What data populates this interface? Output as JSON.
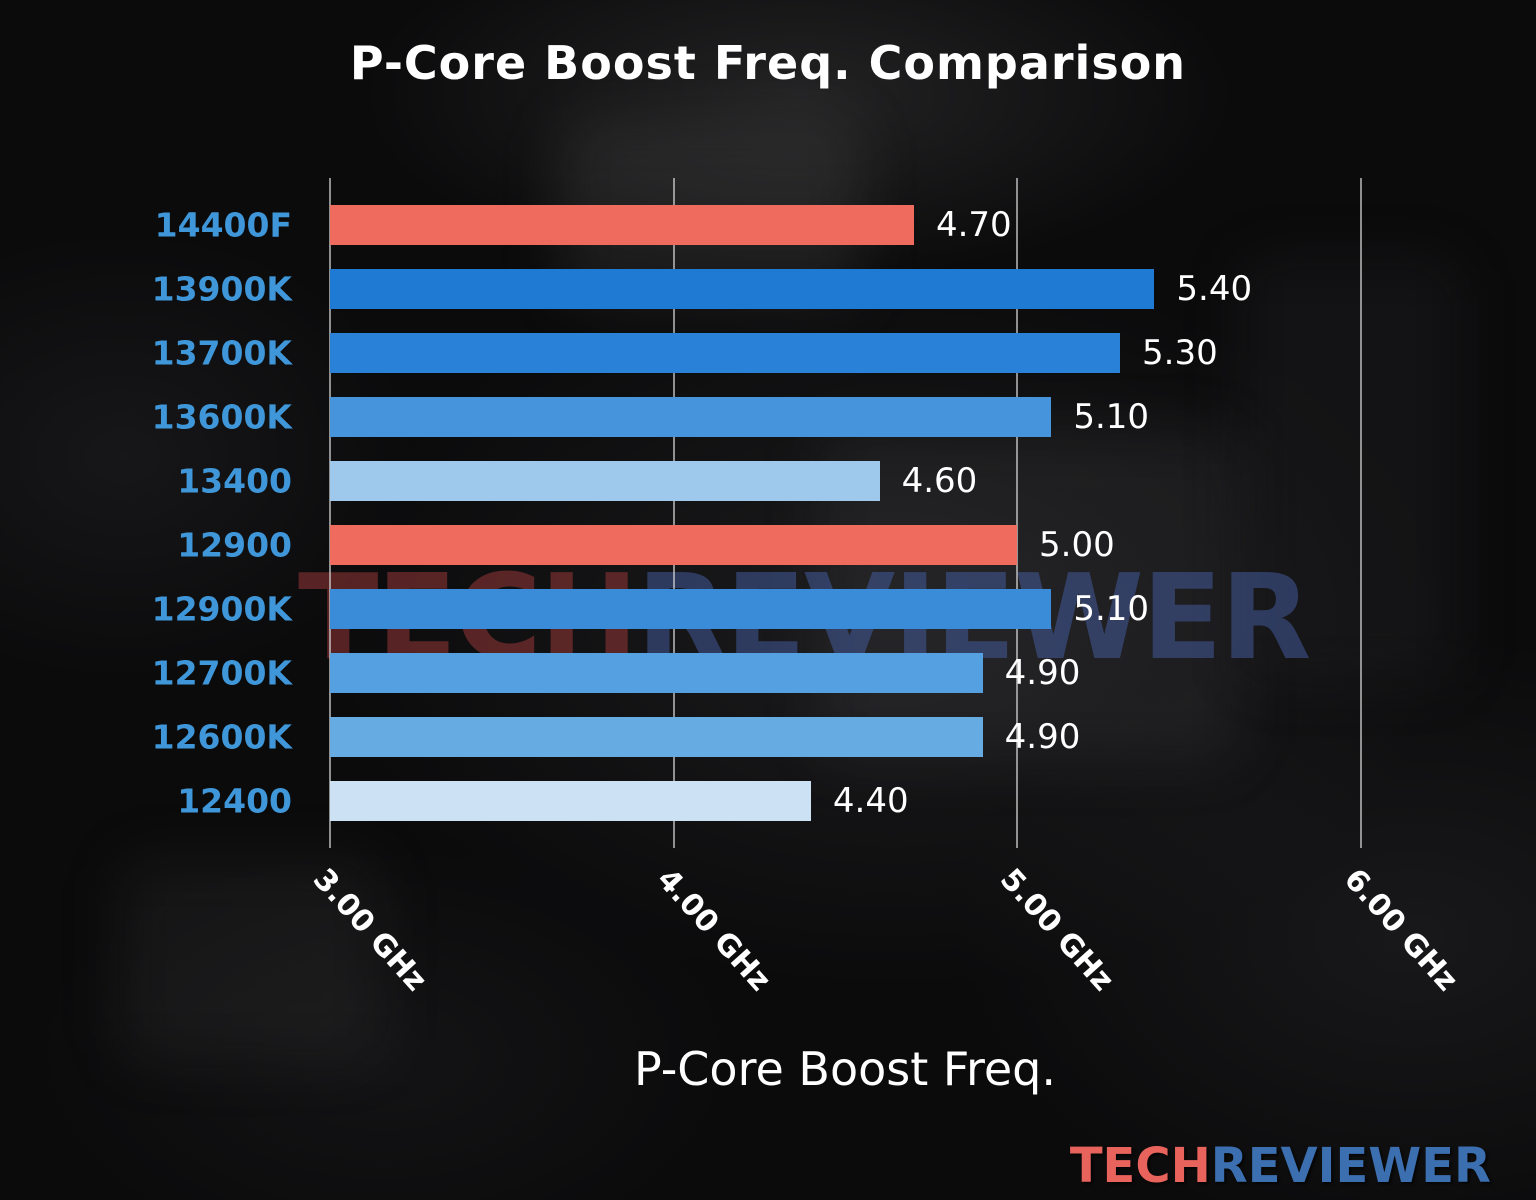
{
  "title": "P-Core Boost Freq. Comparison",
  "watermark": {
    "part1": "TECH",
    "part2": "REVIEWER"
  },
  "brand": {
    "part1": "TECH",
    "part2": "REVIEWER",
    "color1": "#e8635c",
    "color2": "#3c6fb0"
  },
  "chart_data": {
    "type": "bar",
    "orientation": "horizontal",
    "title": "P-Core Boost Freq. Comparison",
    "xlabel": "P-Core Boost Freq.",
    "ylabel": "",
    "xlim": [
      3.0,
      6.4
    ],
    "grid": true,
    "categories": [
      "14400F",
      "13900K",
      "13700K",
      "13600K",
      "13400",
      "12900",
      "12900K",
      "12700K",
      "12600K",
      "12400"
    ],
    "values": [
      4.7,
      5.4,
      5.3,
      5.1,
      4.6,
      5.0,
      5.1,
      4.9,
      4.9,
      4.4
    ],
    "value_labels": [
      "4.70",
      "5.40",
      "5.30",
      "5.10",
      "4.60",
      "5.00",
      "5.10",
      "4.90",
      "4.90",
      "4.40"
    ],
    "unit": "GHz",
    "bar_colors": [
      "#ee6b5e",
      "#1e7ad3",
      "#2a82d8",
      "#4694dc",
      "#9ec8ec",
      "#ee6b5e",
      "#3a8cd9",
      "#55a0e0",
      "#67abe3",
      "#cde1f4"
    ],
    "category_label_color": "#3f97d9",
    "highlight_color": "#ee6b5e",
    "x_ticks": [
      {
        "value": 3.0,
        "label": "3.00 GHz"
      },
      {
        "value": 4.0,
        "label": "4.00 GHz"
      },
      {
        "value": 5.0,
        "label": "5.00 GHz"
      },
      {
        "value": 6.0,
        "label": "6.00 GHz"
      }
    ]
  }
}
